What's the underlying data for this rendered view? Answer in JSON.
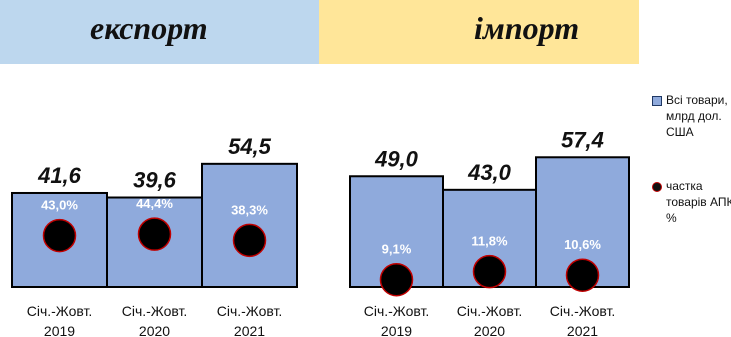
{
  "headers": {
    "export": "експорт",
    "import": "імпорт"
  },
  "legend": {
    "bars": "Всі товари, млрд дол. США",
    "dots": "частка товарів АПК, %"
  },
  "colors": {
    "bar": "#8faadc",
    "bar_border": "#000000",
    "dot": "#000000",
    "dot_border": "#c00000"
  },
  "chart_data": [
    {
      "type": "bar",
      "title": "експорт",
      "categories": [
        "Січ.-Жовт.\n2019",
        "Січ.-Жовт.\n2020",
        "Січ.-Жовт.\n2021"
      ],
      "series": [
        {
          "name": "Всі товари, млрд дол. США",
          "values": [
            41.6,
            39.6,
            54.5
          ],
          "labels": [
            "41,6",
            "39,6",
            "54,5"
          ]
        },
        {
          "name": "частка товарів АПК, %",
          "values": [
            43.0,
            44.4,
            38.3
          ],
          "labels": [
            "43,0%",
            "44,4%",
            "38,3%"
          ]
        }
      ],
      "ylim": [
        0,
        60
      ]
    },
    {
      "type": "bar",
      "title": "імпорт",
      "categories": [
        "Січ.-Жовт.\n2019",
        "Січ.-Жовт.\n2020",
        "Січ.-Жовт.\n2021"
      ],
      "series": [
        {
          "name": "Всі товари, млрд дол. США",
          "values": [
            49.0,
            43.0,
            57.4
          ],
          "labels": [
            "49,0",
            "43,0",
            "57,4"
          ]
        },
        {
          "name": "частка товарів АПК, %",
          "values": [
            9.1,
            11.8,
            10.6
          ],
          "labels": [
            "9,1%",
            "11,8%",
            "10,6%"
          ]
        }
      ],
      "ylim": [
        0,
        60
      ]
    }
  ]
}
